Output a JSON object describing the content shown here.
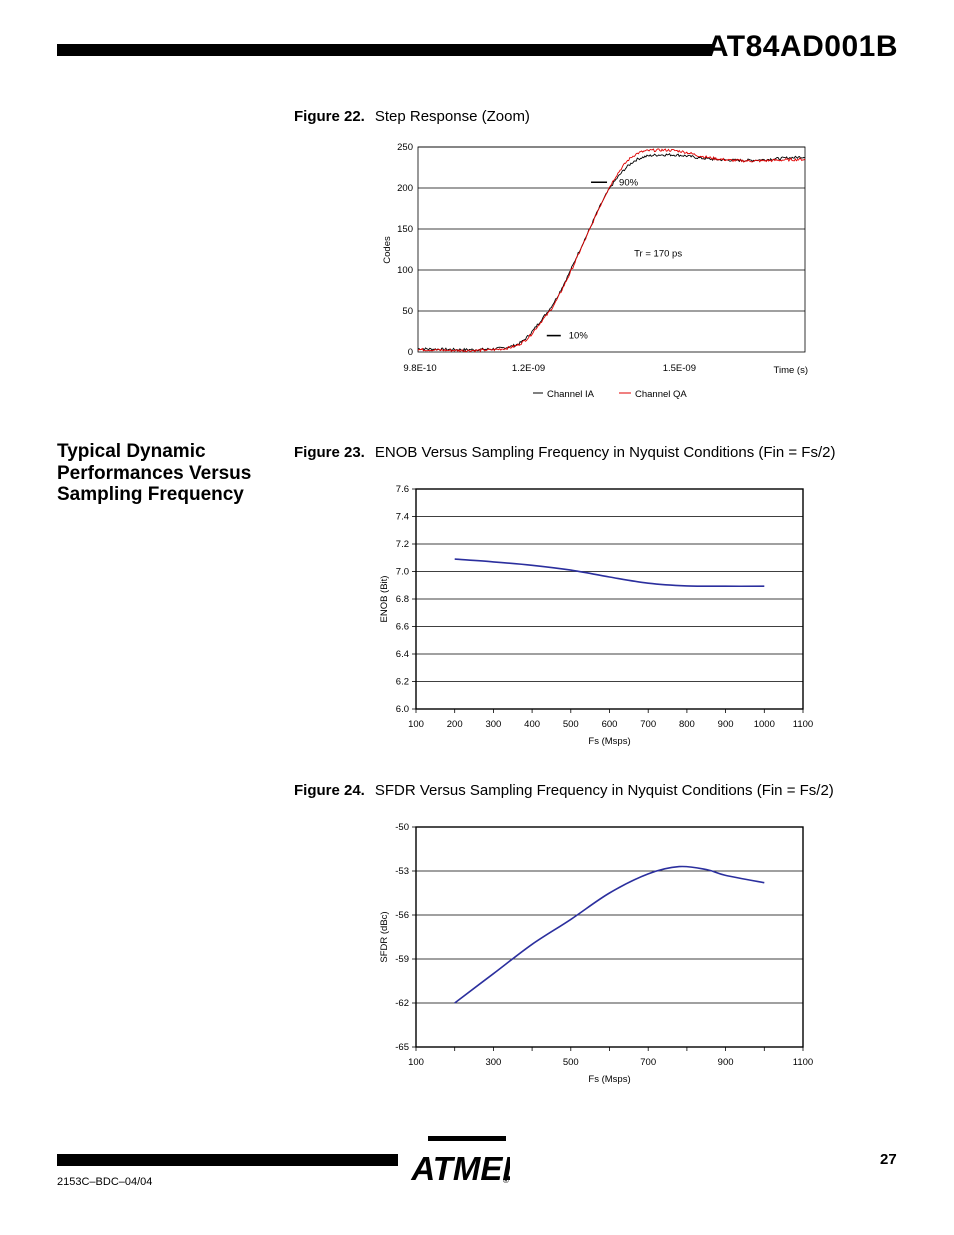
{
  "header": {
    "title": "AT84AD001B"
  },
  "section": {
    "heading": "Typical Dynamic Performances Versus Sampling Frequency"
  },
  "figures": [
    {
      "label": "Figure 22.",
      "caption": "Step Response (Zoom)"
    },
    {
      "label": "Figure 23.",
      "caption": "ENOB Versus Sampling Frequency in Nyquist Conditions (Fin = Fs/2)"
    },
    {
      "label": "Figure 24.",
      "caption": "SFDR Versus Sampling Frequency in Nyquist Conditions (Fin = Fs/2)"
    }
  ],
  "footer": {
    "doc_code": "2153C–BDC–04/04",
    "page_number": "27",
    "logo_text": "ATMEL",
    "logo_mark": "®"
  },
  "chart_data": [
    {
      "type": "line",
      "title": "",
      "xlabel": "Time (s)",
      "ylabel": "Codes",
      "x_tick_labels": [
        "9.8E-10",
        "1.2E-09",
        "1.5E-09"
      ],
      "x_ticks": [
        9.8e-10,
        1.2e-09,
        1.5e-09
      ],
      "xlim": [
        9.8e-10,
        1.75e-09
      ],
      "ylim": [
        0,
        250
      ],
      "y_ticks": [
        0,
        50,
        100,
        150,
        200,
        250
      ],
      "grid": true,
      "legend": "bottom",
      "annotations": [
        {
          "text": "90%",
          "x": 1.38e-09,
          "y": 207
        },
        {
          "text": "Tr = 170 ps",
          "x": 1.41e-09,
          "y": 120
        },
        {
          "text": "10%",
          "x": 1.28e-09,
          "y": 20
        }
      ],
      "series": [
        {
          "name": "Channel IA",
          "color": "#000000",
          "x": [
            9.8e-10,
            1.05e-09,
            1.1e-09,
            1.15e-09,
            1.18e-09,
            1.2e-09,
            1.22e-09,
            1.25e-09,
            1.28e-09,
            1.3e-09,
            1.32e-09,
            1.34e-09,
            1.36e-09,
            1.38e-09,
            1.4e-09,
            1.42e-09,
            1.45e-09,
            1.5e-09,
            1.55e-09,
            1.6e-09,
            1.65e-09,
            1.7e-09,
            1.75e-09
          ],
          "y": [
            4,
            3,
            3,
            5,
            10,
            20,
            35,
            60,
            95,
            122,
            148,
            175,
            198,
            215,
            228,
            236,
            240,
            240,
            236,
            234,
            234,
            236,
            238
          ]
        },
        {
          "name": "Channel QA",
          "color": "#e00000",
          "x": [
            9.8e-10,
            1.05e-09,
            1.1e-09,
            1.15e-09,
            1.18e-09,
            1.2e-09,
            1.22e-09,
            1.25e-09,
            1.28e-09,
            1.3e-09,
            1.32e-09,
            1.34e-09,
            1.36e-09,
            1.38e-09,
            1.4e-09,
            1.42e-09,
            1.45e-09,
            1.5e-09,
            1.55e-09,
            1.6e-09,
            1.65e-09,
            1.7e-09,
            1.75e-09
          ],
          "y": [
            3,
            2,
            2,
            4,
            9,
            18,
            33,
            57,
            93,
            120,
            147,
            175,
            200,
            220,
            235,
            243,
            246,
            245,
            238,
            234,
            233,
            234,
            235
          ]
        }
      ]
    },
    {
      "type": "line",
      "title": "",
      "xlabel": "Fs (Msps)",
      "ylabel": "ENOB (Bit)",
      "x_ticks": [
        100,
        200,
        300,
        400,
        500,
        600,
        700,
        800,
        900,
        1000,
        1100
      ],
      "y_ticks": [
        6.0,
        6.2,
        6.4,
        6.6,
        6.8,
        7.0,
        7.2,
        7.4,
        7.6
      ],
      "x_tick_labels": [
        "100",
        "200",
        "300",
        "400",
        "500",
        "600",
        "700",
        "800",
        "900",
        "1000",
        "1100"
      ],
      "y_tick_labels": [
        "6.0",
        "6.2",
        "6.4",
        "6.6",
        "6.8",
        "7.0",
        "7.2",
        "7.4",
        "7.6"
      ],
      "xlim": [
        100,
        1100
      ],
      "ylim": [
        6.0,
        7.6
      ],
      "grid": true,
      "series": [
        {
          "color": "#2b2f9e",
          "x": [
            200,
            300,
            400,
            500,
            600,
            700,
            800,
            900,
            1000
          ],
          "y": [
            7.09,
            7.07,
            7.045,
            7.01,
            6.96,
            6.915,
            6.895,
            6.893,
            6.893
          ]
        }
      ]
    },
    {
      "type": "line",
      "title": "",
      "xlabel": "Fs (Msps)",
      "ylabel": "SFDR (dBc)",
      "x_ticks": [
        100,
        300,
        500,
        700,
        900,
        1100
      ],
      "y_ticks": [
        -65,
        -62,
        -59,
        -56,
        -53,
        -50
      ],
      "x_tick_labels": [
        "100",
        "300",
        "500",
        "700",
        "900",
        "1100"
      ],
      "y_tick_labels": [
        "-65",
        "-62",
        "-59",
        "-56",
        "-53",
        "-50"
      ],
      "xlim": [
        100,
        1100
      ],
      "ylim": [
        -65,
        -50
      ],
      "grid": true,
      "series": [
        {
          "color": "#2b2f9e",
          "x": [
            200,
            300,
            400,
            500,
            600,
            700,
            780,
            850,
            900,
            1000
          ],
          "y": [
            -62.0,
            -60.0,
            -58.0,
            -56.3,
            -54.5,
            -53.2,
            -52.7,
            -52.9,
            -53.3,
            -53.8
          ]
        }
      ]
    }
  ]
}
